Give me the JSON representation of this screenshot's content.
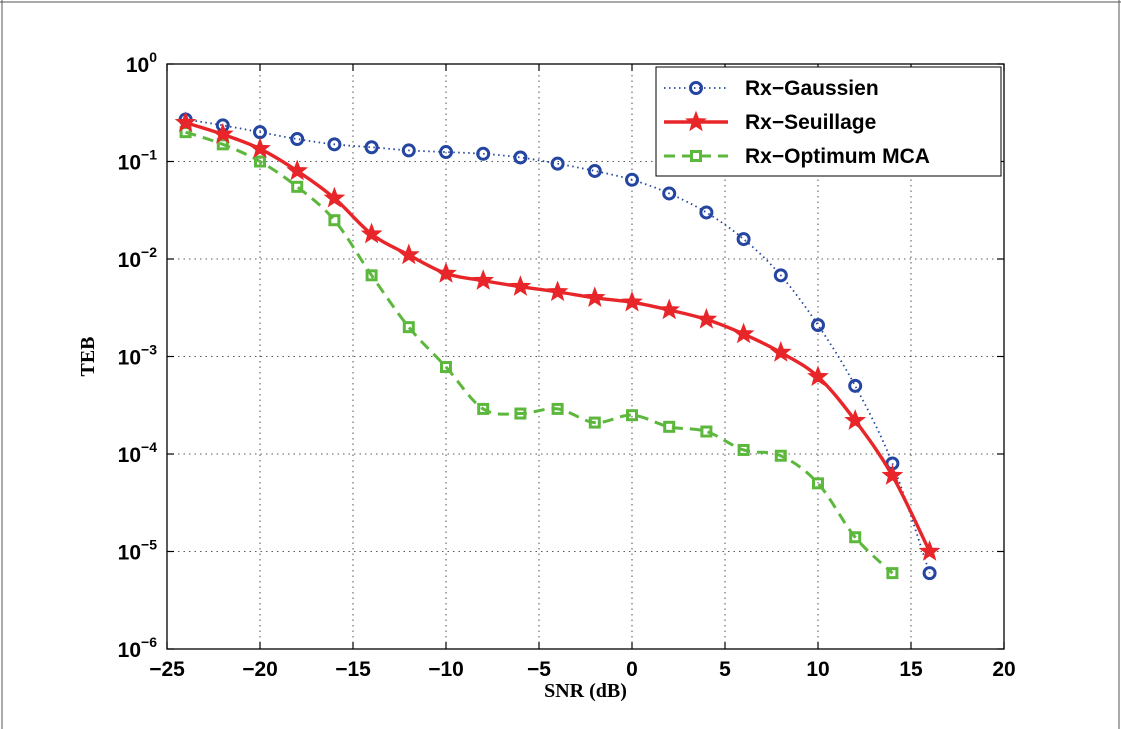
{
  "chart_data": {
    "type": "line",
    "xlabel": "SNR (dB)",
    "ylabel": "TEB",
    "xlim": [
      -25,
      20
    ],
    "ylim": [
      1e-06,
      1
    ],
    "yscale": "log",
    "grid": true,
    "legend_position": "top-right",
    "x_ticks": [
      "−25",
      "−20",
      "−15",
      "−10",
      "−5",
      "0",
      "5",
      "10",
      "15",
      "20"
    ],
    "x_tick_values": [
      -25,
      -20,
      -15,
      -10,
      -5,
      0,
      5,
      10,
      15,
      20
    ],
    "y_ticks": [
      {
        "base": "10",
        "exp": "0",
        "value": 1
      },
      {
        "base": "10",
        "exp": "−1",
        "value": 0.1
      },
      {
        "base": "10",
        "exp": "−2",
        "value": 0.01
      },
      {
        "base": "10",
        "exp": "−3",
        "value": 0.001
      },
      {
        "base": "10",
        "exp": "−4",
        "value": 0.0001
      },
      {
        "base": "10",
        "exp": "−5",
        "value": 1e-05
      },
      {
        "base": "10",
        "exp": "−6",
        "value": 1e-06
      }
    ],
    "series": [
      {
        "name": "Rx−Gaussien",
        "color": "#2445a0",
        "line": "dotted",
        "marker": "circle",
        "x": [
          -24,
          -22,
          -20,
          -18,
          -16,
          -14,
          -12,
          -10,
          -8,
          -6,
          -4,
          -2,
          0,
          2,
          4,
          6,
          8,
          10,
          12,
          14,
          16
        ],
        "y": [
          0.27,
          0.235,
          0.2,
          0.17,
          0.15,
          0.14,
          0.13,
          0.125,
          0.12,
          0.11,
          0.095,
          0.08,
          0.065,
          0.047,
          0.03,
          0.016,
          0.0068,
          0.0021,
          0.0005,
          8e-05,
          6e-06
        ]
      },
      {
        "name": "Rx−Seuillage",
        "color": "#e8262a",
        "line": "solid",
        "marker": "star",
        "x": [
          -24,
          -22,
          -20,
          -18,
          -16,
          -14,
          -12,
          -10,
          -8,
          -6,
          -4,
          -2,
          0,
          2,
          4,
          6,
          8,
          10,
          12,
          14,
          16
        ],
        "y": [
          0.25,
          0.19,
          0.135,
          0.08,
          0.042,
          0.018,
          0.011,
          0.0071,
          0.006,
          0.0052,
          0.0046,
          0.004,
          0.0036,
          0.003,
          0.0024,
          0.0017,
          0.0011,
          0.00062,
          0.00022,
          6e-05,
          1e-05
        ]
      },
      {
        "name": "Rx−Optimum MCA",
        "color": "#5cb83c",
        "line": "dashed",
        "marker": "square",
        "x": [
          -24,
          -22,
          -20,
          -18,
          -16,
          -14,
          -12,
          -10,
          -8,
          -6,
          -4,
          -2,
          0,
          2,
          4,
          6,
          8,
          10,
          12,
          14
        ],
        "y": [
          0.2,
          0.15,
          0.1,
          0.055,
          0.025,
          0.0068,
          0.002,
          0.00078,
          0.00029,
          0.00026,
          0.00029,
          0.00021,
          0.00025,
          0.00019,
          0.00017,
          0.00011,
          9.6e-05,
          5e-05,
          1.4e-05,
          6e-06
        ]
      }
    ]
  }
}
